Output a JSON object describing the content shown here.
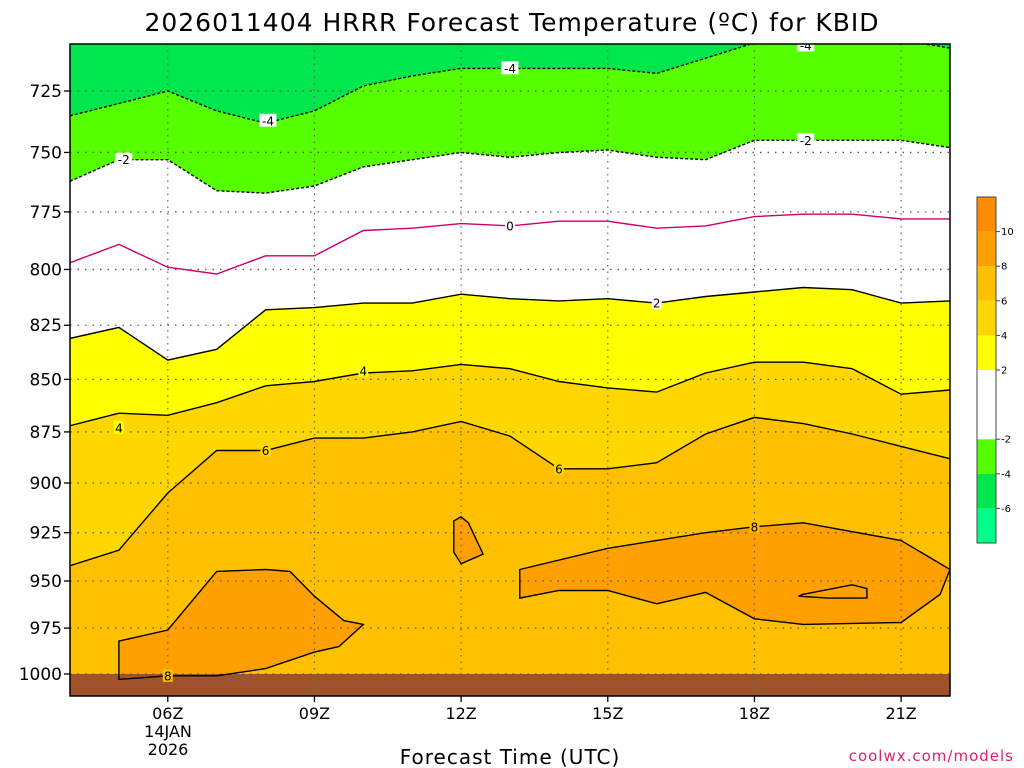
{
  "chart_data": {
    "type": "heatmap",
    "title": "2026011404 HRRR Forecast Temperature (ºC) for KBID",
    "xlabel": "Forecast Time (UTC)",
    "ylabel": "",
    "credit": "coolwx.com/models",
    "date_label_day": "14JAN",
    "date_label_year": "2026",
    "x_ticks": [
      {
        "label": "06Z",
        "hour": 6
      },
      {
        "label": "09Z",
        "hour": 9
      },
      {
        "label": "12Z",
        "hour": 12
      },
      {
        "label": "15Z",
        "hour": 15
      },
      {
        "label": "18Z",
        "hour": 18
      },
      {
        "label": "21Z",
        "hour": 21
      }
    ],
    "xlim": [
      4,
      22
    ],
    "y_ticks": [
      725,
      750,
      775,
      800,
      825,
      850,
      875,
      900,
      925,
      950,
      975,
      1000
    ],
    "ylim": [
      1005,
      700
    ],
    "y_scale": "log-pressure",
    "surface_pressure_hPa": 1000,
    "hours": [
      4,
      5,
      6,
      7,
      8,
      9,
      10,
      11,
      12,
      13,
      14,
      15,
      16,
      17,
      18,
      19,
      20,
      21,
      22
    ],
    "colorbar": {
      "ticks": [
        -6,
        -4,
        -2,
        2,
        4,
        6,
        8,
        10
      ],
      "bins": [
        {
          "from": -8,
          "to": -6,
          "color": "#00ff88"
        },
        {
          "from": -6,
          "to": -4,
          "color": "#00e64d"
        },
        {
          "from": -4,
          "to": -2,
          "color": "#55ff00"
        },
        {
          "from": -2,
          "to": 0,
          "color": "#ffffff"
        },
        {
          "from": 0,
          "to": 2,
          "color": "#ffffff"
        },
        {
          "from": 2,
          "to": 4,
          "color": "#ffff00"
        },
        {
          "from": 4,
          "to": 6,
          "color": "#ffd700"
        },
        {
          "from": 6,
          "to": 8,
          "color": "#ffc000"
        },
        {
          "from": 8,
          "to": 10,
          "color": "#ff9f00"
        },
        {
          "from": 10,
          "to": 12,
          "color": "#ff8c00"
        }
      ]
    },
    "surface_color": "#a0522d",
    "contours": [
      {
        "level": -4,
        "style": "dashed",
        "color": "#000000",
        "pressures": [
          735,
          730,
          725,
          733,
          738,
          733,
          723,
          719,
          716,
          716,
          716,
          716,
          718,
          712,
          706,
          706,
          705,
          705,
          708
        ]
      },
      {
        "level": -2,
        "style": "dashed",
        "color": "#000000",
        "pressures": [
          762,
          753,
          753,
          766,
          767,
          764,
          756,
          753,
          750,
          752,
          750,
          749,
          752,
          753,
          745,
          745,
          745,
          745,
          748
        ]
      },
      {
        "level": 0,
        "style": "solid",
        "color": "#cc0066",
        "pressures": [
          797,
          789,
          799,
          802,
          794,
          794,
          783,
          782,
          780,
          781,
          779,
          779,
          782,
          781,
          777,
          776,
          776,
          778,
          778
        ]
      },
      {
        "level": 2,
        "style": "solid",
        "color": "#000000",
        "pressures": [
          831,
          826,
          841,
          836,
          818,
          817,
          815,
          815,
          811,
          813,
          814,
          813,
          815,
          812,
          810,
          808,
          809,
          815,
          814
        ]
      },
      {
        "level": 4,
        "style": "solid",
        "color": "#000000",
        "pressures": [
          872,
          866,
          867,
          861,
          853,
          851,
          847,
          846,
          843,
          845,
          851,
          854,
          856,
          847,
          842,
          842,
          845,
          857,
          855
        ]
      },
      {
        "level": 6,
        "style": "solid",
        "color": "#000000",
        "pressures": [
          942,
          934,
          905,
          884,
          884,
          878,
          878,
          875,
          870,
          877,
          893,
          893,
          890,
          876,
          868,
          871,
          876,
          882,
          888
        ]
      },
      {
        "level": 8,
        "style": "closed",
        "color": "#000000",
        "points": [
          [
            5.0,
            982
          ],
          [
            6.0,
            976
          ],
          [
            7.0,
            945
          ],
          [
            8.0,
            944
          ],
          [
            8.5,
            945
          ],
          [
            9.0,
            958
          ],
          [
            9.6,
            971
          ],
          [
            10.0,
            973
          ],
          [
            9.5,
            985
          ],
          [
            9.0,
            988
          ],
          [
            8.0,
            997
          ],
          [
            7.0,
            1001
          ],
          [
            6.0,
            1001
          ],
          [
            5.0,
            1003
          ]
        ]
      },
      {
        "level": 8,
        "style": "closed",
        "color": "#000000",
        "points": [
          [
            12.0,
            917
          ],
          [
            11.85,
            919
          ],
          [
            11.85,
            935
          ],
          [
            12.0,
            941
          ],
          [
            12.45,
            936
          ],
          [
            12.15,
            920
          ]
        ]
      },
      {
        "level": 8,
        "style": "closed",
        "color": "#000000",
        "points": [
          [
            13.2,
            944
          ],
          [
            15.0,
            933
          ],
          [
            17.0,
            925
          ],
          [
            18.0,
            922
          ],
          [
            19.0,
            920
          ],
          [
            21.0,
            929
          ],
          [
            22.0,
            944
          ],
          [
            21.8,
            957
          ],
          [
            21.0,
            972
          ],
          [
            19.0,
            973
          ],
          [
            18.0,
            970
          ],
          [
            17.0,
            956
          ],
          [
            16.0,
            962
          ],
          [
            15.0,
            955
          ],
          [
            14.0,
            955
          ],
          [
            13.2,
            959
          ]
        ]
      },
      {
        "level": 8,
        "style": "closed",
        "color": "#000000",
        "points": [
          [
            19.0,
            957
          ],
          [
            20.0,
            952
          ],
          [
            20.3,
            954
          ],
          [
            20.3,
            959
          ],
          [
            19.5,
            959
          ],
          [
            18.9,
            958
          ]
        ]
      }
    ],
    "contour_labels": [
      {
        "text": "-4",
        "hour": 13.0,
        "pressure": 716
      },
      {
        "text": "-4",
        "hour": 8.05,
        "pressure": 737
      },
      {
        "text": "-4",
        "hour": 19.05,
        "pressure": 707
      },
      {
        "text": "-2",
        "hour": 5.1,
        "pressure": 753
      },
      {
        "text": "-2",
        "hour": 19.05,
        "pressure": 745
      },
      {
        "text": "0",
        "hour": 13.0,
        "pressure": 781
      },
      {
        "text": "2",
        "hour": 16.0,
        "pressure": 815
      },
      {
        "text": "4",
        "hour": 5.0,
        "pressure": 873
      },
      {
        "text": "4",
        "hour": 10.0,
        "pressure": 846
      },
      {
        "text": "6",
        "hour": 8.0,
        "pressure": 884
      },
      {
        "text": "6",
        "hour": 14.0,
        "pressure": 893
      },
      {
        "text": "8",
        "hour": 18.0,
        "pressure": 922
      },
      {
        "text": "8",
        "hour": 6.0,
        "pressure": 1001
      }
    ]
  }
}
